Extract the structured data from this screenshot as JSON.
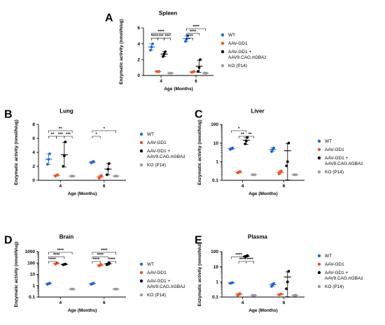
{
  "legend": {
    "entries": [
      {
        "key": "wt",
        "label": "WT",
        "color": "#2166d6"
      },
      {
        "key": "gd1",
        "label": "AAV-GD1",
        "color": "#e8532b"
      },
      {
        "key": "rescue",
        "label": "AAV-GD1 +",
        "label2": "AAV9.CAG.",
        "label2_italic": "hGBA1",
        "color": "#000000"
      },
      {
        "key": "ko",
        "label": "KO (P14)",
        "color": "#9a9a9a"
      }
    ]
  },
  "chart_data": [
    {
      "id": "A",
      "panel_label": "A",
      "type": "scatter",
      "title": "Spleen",
      "xlabel": "Age (Months)",
      "ylabel": "Enzymatic activity (nmol/h/ug)",
      "yscale": "linear",
      "ylim": [
        0,
        6
      ],
      "yticks": [
        "0",
        "2",
        "4",
        "6"
      ],
      "categories": [
        "4",
        "6"
      ],
      "series": [
        {
          "key": "wt",
          "values": [
            [
              3.2,
              3.6,
              4.0
            ],
            [
              4.3,
              4.6,
              5.0
            ]
          ]
        },
        {
          "key": "gd1",
          "values": [
            [
              0.5,
              0.5,
              0.5
            ],
            [
              0.4,
              0.45,
              0.5
            ]
          ]
        },
        {
          "key": "rescue",
          "values": [
            [
              2.4,
              2.7,
              3.0
            ],
            [
              0.5,
              1.0,
              2.0
            ]
          ]
        },
        {
          "key": "ko",
          "values": [
            [
              0.3,
              0.3,
              0.3
            ],
            [
              0.3,
              0.3,
              0.3
            ]
          ]
        }
      ],
      "significance": [
        {
          "label": "****",
          "cat": 0,
          "from": 0,
          "to": 3,
          "level": 2
        },
        {
          "label": "****",
          "cat": 0,
          "from": 0,
          "to": 1,
          "level": 1
        },
        {
          "label": "***",
          "cat": 0,
          "from": 1,
          "to": 2,
          "level": 1
        },
        {
          "label": "***",
          "cat": 0,
          "from": 2,
          "to": 3,
          "level": 1
        },
        {
          "label": "****",
          "cat": 1,
          "from": 0,
          "to": 3,
          "level": 3
        },
        {
          "label": "****",
          "cat": 1,
          "from": 0,
          "to": 2,
          "level": 2
        },
        {
          "label": "****",
          "cat": 1,
          "from": 0,
          "to": 1,
          "level": 1
        }
      ]
    },
    {
      "id": "B",
      "panel_label": "B",
      "type": "scatter",
      "title": "Lung",
      "xlabel": "Age (Months)",
      "ylabel": "Enzymatic activity (nmol/h/ug)",
      "yscale": "linear",
      "ylim": [
        0,
        8
      ],
      "yticks": [
        "0",
        "2",
        "4",
        "6",
        "8"
      ],
      "categories": [
        "4",
        "6"
      ],
      "series": [
        {
          "key": "wt",
          "values": [
            [
              2.3,
              3.0,
              3.8
            ],
            [
              2.5,
              2.6,
              2.7
            ]
          ]
        },
        {
          "key": "gd1",
          "values": [
            [
              0.6,
              0.7,
              0.8
            ],
            [
              0.3,
              0.5,
              0.7
            ]
          ]
        },
        {
          "key": "rescue",
          "values": [
            [
              2.0,
              3.5,
              5.5
            ],
            [
              0.8,
              1.6,
              2.4
            ]
          ]
        },
        {
          "key": "ko",
          "values": [
            [
              0.6,
              0.6,
              0.6
            ],
            [
              0.6,
              0.6,
              0.6
            ]
          ]
        }
      ],
      "significance": [
        {
          "label": "**",
          "cat": 0,
          "from": 0,
          "to": 3,
          "level": 2
        },
        {
          "label": "**",
          "cat": 0,
          "from": 0,
          "to": 1,
          "level": 1
        },
        {
          "label": "***",
          "cat": 0,
          "from": 1,
          "to": 2,
          "level": 1
        },
        {
          "label": "***",
          "cat": 0,
          "from": 2,
          "to": 3,
          "level": 1
        },
        {
          "label": "*",
          "cat": 1,
          "from": 0,
          "to": 3,
          "level": 2
        },
        {
          "label": "*",
          "cat": 1,
          "from": 0,
          "to": 1,
          "level": 1
        }
      ]
    },
    {
      "id": "C",
      "panel_label": "C",
      "type": "scatter",
      "title": "Liver",
      "xlabel": "Age (Months)",
      "ylabel": "Enzymatic activity (nmol/h/ug)",
      "yscale": "log",
      "ylim": [
        0.1,
        100
      ],
      "yticks": [
        "0.1",
        "1",
        "10",
        "100"
      ],
      "categories": [
        "4",
        "6"
      ],
      "series": [
        {
          "key": "wt",
          "values": [
            [
              4.5,
              5.0,
              5.5
            ],
            [
              3.5,
              4.5,
              5.5
            ]
          ]
        },
        {
          "key": "gd1",
          "values": [
            [
              0.25,
              0.27,
              0.3
            ],
            [
              0.22,
              0.27,
              0.32
            ]
          ]
        },
        {
          "key": "rescue",
          "values": [
            [
              9.0,
              13.0,
              20.0
            ],
            [
              0.6,
              1.0,
              10.0
            ]
          ]
        },
        {
          "key": "ko",
          "values": [
            [
              0.2,
              0.2,
              0.2
            ],
            [
              0.2,
              0.2,
              0.2
            ]
          ]
        }
      ],
      "significance": [
        {
          "label": "*",
          "cat": 0,
          "from": 0,
          "to": 2,
          "level": 2
        },
        {
          "label": "**",
          "cat": 0,
          "from": 1,
          "to": 2,
          "level": 1
        },
        {
          "label": "**",
          "cat": 0,
          "from": 2,
          "to": 3,
          "level": 1
        }
      ]
    },
    {
      "id": "D",
      "panel_label": "D",
      "type": "scatter",
      "title": "Brain",
      "xlabel": "Age (Months)",
      "ylabel": "Enzymatic activity (nmol/h/ug)",
      "yscale": "log",
      "ylim": [
        0.1,
        1000
      ],
      "yticks": [
        "0.1",
        "1",
        "10",
        "100",
        "1000"
      ],
      "categories": [
        "4",
        "6"
      ],
      "series": [
        {
          "key": "wt",
          "values": [
            [
              1.3,
              1.5,
              1.7
            ],
            [
              1.3,
              1.5,
              1.7
            ]
          ]
        },
        {
          "key": "gd1",
          "values": [
            [
              80,
              90,
              100
            ],
            [
              55,
              65,
              75
            ]
          ]
        },
        {
          "key": "rescue",
          "values": [
            [
              70,
              75,
              80
            ],
            [
              70,
              80,
              100
            ]
          ]
        },
        {
          "key": "ko",
          "values": [
            [
              0.5,
              0.5,
              0.5
            ],
            [
              0.5,
              0.5,
              0.5
            ]
          ]
        }
      ],
      "significance": [
        {
          "label": "****",
          "cat": 0,
          "from": 0,
          "to": 3,
          "level": 3
        },
        {
          "label": "****",
          "cat": 0,
          "from": 0,
          "to": 2,
          "level": 2
        },
        {
          "label": "****",
          "cat": 0,
          "from": 0,
          "to": 1,
          "level": 1
        },
        {
          "label": "****",
          "cat": 1,
          "from": 0,
          "to": 3,
          "level": 3
        },
        {
          "label": "****",
          "cat": 1,
          "from": 0,
          "to": 2,
          "level": 2
        },
        {
          "label": "****",
          "cat": 1,
          "from": 0,
          "to": 1,
          "level": 1
        },
        {
          "label": "****",
          "cat": 1,
          "from": 2,
          "to": 3,
          "level": 1
        }
      ]
    },
    {
      "id": "E",
      "panel_label": "E",
      "type": "scatter",
      "title": "Plasma",
      "xlabel": "Age (Months)",
      "ylabel": "Enzymatic activity (nmol/h/ul)",
      "yscale": "log",
      "ylim": [
        0.1,
        100
      ],
      "yticks": [
        "0.1",
        "1",
        "10",
        "100"
      ],
      "categories": [
        "4",
        "6"
      ],
      "series": [
        {
          "key": "wt",
          "values": [
            [
              0.8,
              0.85,
              0.9
            ],
            [
              0.5,
              0.65,
              0.8
            ]
          ]
        },
        {
          "key": "gd1",
          "values": [
            [
              0.13,
              0.15,
              0.17
            ],
            [
              0.14,
              0.15,
              0.16
            ]
          ]
        },
        {
          "key": "rescue",
          "values": [
            [
              45,
              50,
              55
            ],
            [
              0.35,
              1.0,
              5.0
            ]
          ]
        },
        {
          "key": "ko",
          "values": [
            [
              0.13,
              0.13,
              0.13
            ],
            [
              0.13,
              0.13,
              0.13
            ]
          ]
        }
      ],
      "significance": [
        {
          "label": "****",
          "cat": 0,
          "from": 0,
          "to": 2,
          "level": 2
        },
        {
          "label": "****",
          "cat": 0,
          "from": 1,
          "to": 2,
          "level": 1
        },
        {
          "label": "****",
          "cat": 0,
          "from": 2,
          "to": 3,
          "level": 1
        }
      ]
    }
  ]
}
